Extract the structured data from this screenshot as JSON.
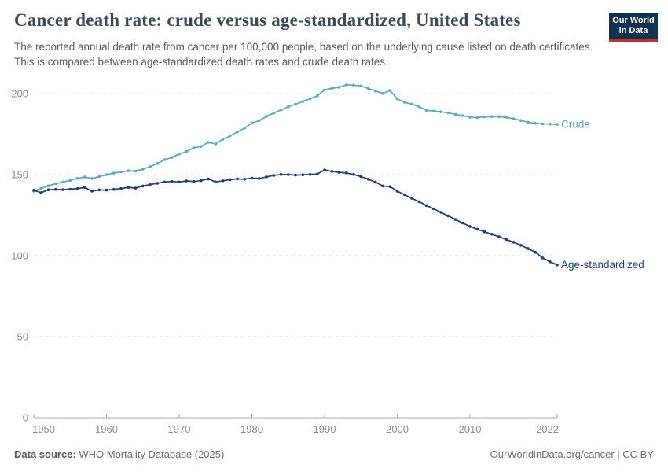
{
  "header": {
    "title": "Cancer death rate: crude versus age-standardized, United States",
    "subtitle": "The reported annual death rate from cancer per 100,000 people, based on the underlying cause listed on death certificates. This is compared between age-standardized death rates and crude death rates."
  },
  "logo": {
    "line1": "Our World",
    "line2": "in Data"
  },
  "footer": {
    "source_label": "Data source:",
    "source_text": " WHO Mortality Database (2025)",
    "credit": "OurWorldinData.org/cancer | CC BY"
  },
  "colors": {
    "crude": "#5fa9b7",
    "age_standardized": "#1f3e6e",
    "grid": "#e0e0e0",
    "axis": "#a8a8a8",
    "tick_label": "#8c8c8c",
    "logo_bg": "#12304f",
    "logo_red": "#be352b"
  },
  "chart_data": {
    "type": "line",
    "title": "Cancer death rate: crude versus age-standardized, United States",
    "xlabel": "",
    "ylabel": "",
    "grid": true,
    "legend_position": "end-of-line-labels",
    "x_range": [
      1950,
      2022
    ],
    "y_range": [
      0,
      215
    ],
    "x_ticks": [
      1950,
      1960,
      1970,
      1980,
      1990,
      2000,
      2010,
      2022
    ],
    "y_ticks": [
      0,
      50,
      100,
      150,
      200
    ],
    "x": [
      1950,
      1951,
      1952,
      1953,
      1954,
      1955,
      1956,
      1957,
      1958,
      1959,
      1960,
      1961,
      1962,
      1963,
      1964,
      1965,
      1966,
      1967,
      1968,
      1969,
      1970,
      1971,
      1972,
      1973,
      1974,
      1975,
      1976,
      1977,
      1978,
      1979,
      1980,
      1981,
      1982,
      1983,
      1984,
      1985,
      1986,
      1987,
      1988,
      1989,
      1990,
      1991,
      1992,
      1993,
      1994,
      1995,
      1996,
      1997,
      1998,
      1999,
      2000,
      2001,
      2002,
      2003,
      2004,
      2005,
      2006,
      2007,
      2008,
      2009,
      2010,
      2011,
      2012,
      2013,
      2014,
      2015,
      2016,
      2017,
      2018,
      2019,
      2020,
      2021,
      2022
    ],
    "series": [
      {
        "name": "Crude",
        "color": "#5fa9b7",
        "values": [
          139.8,
          141.4,
          143.1,
          144.4,
          145.4,
          146.5,
          147.7,
          148.5,
          147.6,
          148.8,
          150.0,
          150.9,
          151.7,
          152.4,
          152.2,
          153.4,
          154.9,
          156.9,
          159.2,
          160.6,
          162.7,
          164.2,
          166.5,
          167.4,
          169.9,
          169.0,
          171.9,
          173.9,
          176.4,
          178.8,
          181.9,
          183.3,
          185.9,
          188.0,
          189.9,
          191.9,
          193.4,
          195.1,
          196.8,
          198.7,
          202.3,
          203.3,
          203.9,
          205.4,
          205.2,
          204.7,
          203.2,
          201.6,
          200.1,
          201.9,
          196.8,
          194.7,
          193.5,
          191.9,
          189.7,
          189.2,
          188.8,
          188.1,
          187.2,
          186.4,
          185.4,
          185.2,
          185.7,
          185.8,
          185.8,
          185.4,
          184.4,
          183.4,
          182.4,
          181.7,
          181.3,
          181.2,
          181.0
        ]
      },
      {
        "name": "Age-standardized",
        "color": "#1f3e6e",
        "values": [
          140.4,
          138.9,
          140.7,
          140.9,
          140.8,
          141.0,
          141.4,
          142.1,
          139.8,
          140.6,
          140.5,
          140.9,
          141.4,
          142.2,
          141.7,
          143.0,
          143.9,
          144.7,
          145.5,
          145.8,
          145.5,
          146.1,
          145.8,
          146.3,
          147.4,
          145.5,
          146.2,
          146.9,
          147.4,
          147.2,
          147.8,
          147.6,
          148.6,
          149.5,
          150.1,
          150.0,
          149.7,
          149.9,
          150.1,
          150.4,
          152.9,
          152.0,
          151.4,
          151.0,
          150.1,
          148.8,
          147.2,
          145.4,
          143.0,
          142.6,
          139.8,
          137.6,
          135.4,
          133.3,
          130.9,
          128.9,
          126.7,
          124.5,
          122.3,
          120.1,
          118.0,
          116.3,
          114.7,
          113.2,
          111.7,
          110.0,
          108.3,
          106.4,
          104.3,
          102.1,
          98.6,
          96.2,
          94.3
        ]
      }
    ]
  }
}
